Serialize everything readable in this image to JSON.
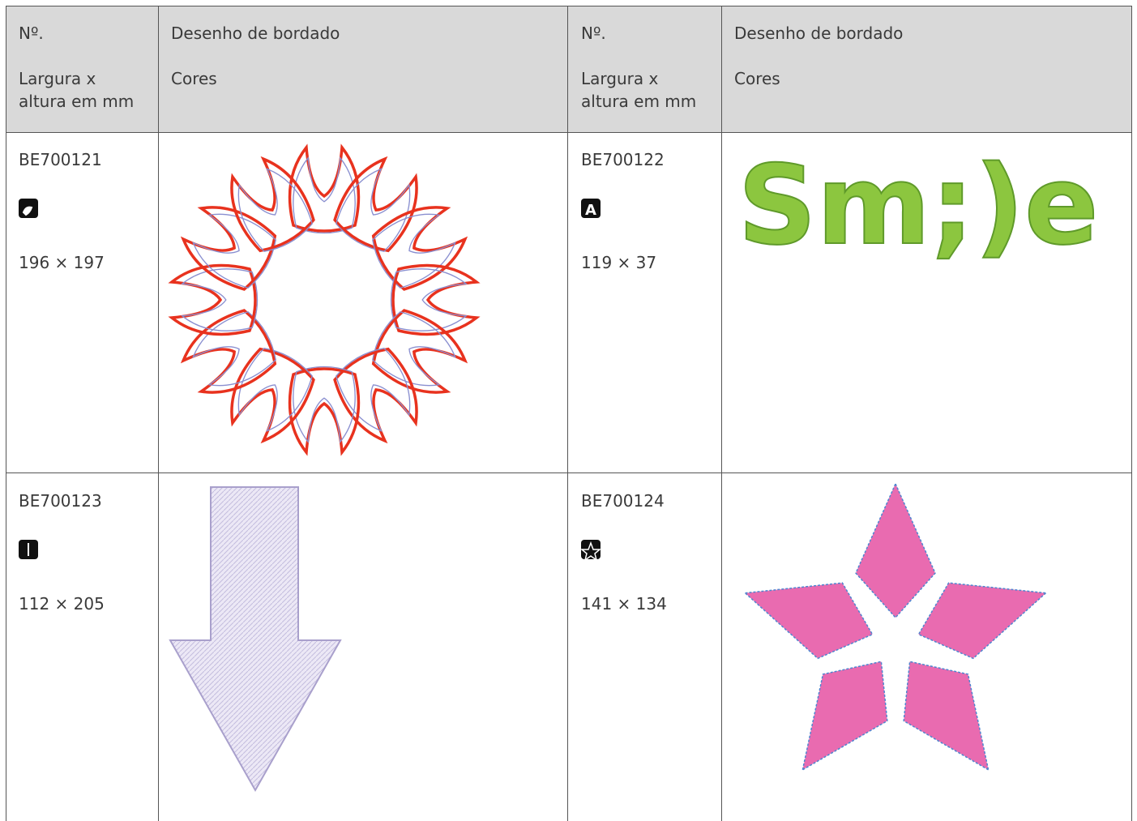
{
  "table": {
    "header": [
      {
        "line1": "Nº.",
        "line2": "Largura x\naltura em mm"
      },
      {
        "line1": "Desenho de bordado",
        "line2": "Cores"
      },
      {
        "line1": "Nº.",
        "line2": "Largura x\naltura em mm"
      },
      {
        "line1": "Desenho de bordado",
        "line2": "Cores"
      }
    ],
    "rows": [
      [
        {
          "number": "BE700121",
          "size": "196 × 197"
        },
        {
          "number": "BE700122",
          "size": "119 × 37",
          "image_text": "Sm;)e"
        }
      ],
      [
        {
          "number": "BE700123",
          "size": "112 × 205"
        },
        {
          "number": "BE700124",
          "size": "141 × 134"
        }
      ]
    ]
  }
}
